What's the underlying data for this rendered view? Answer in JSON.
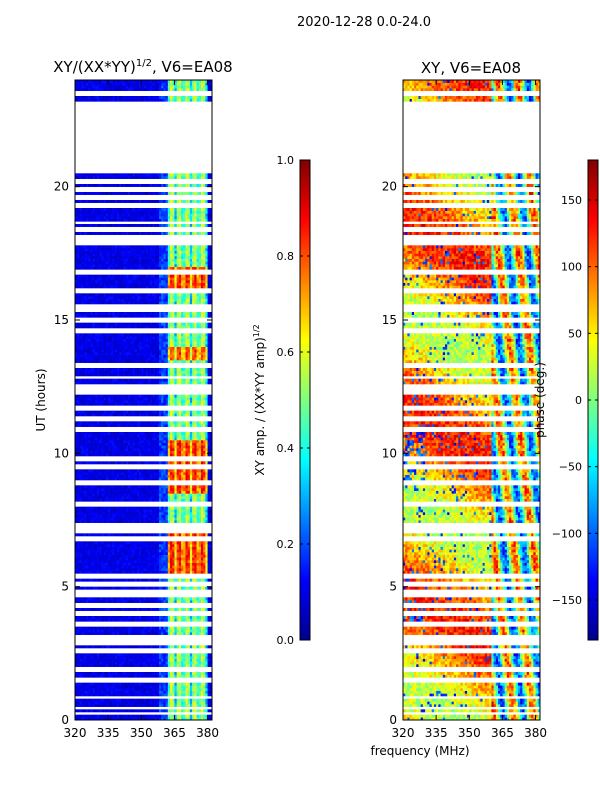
{
  "page_title": "2020-12-28 0.0-24.0",
  "shared_xlabel": "frequency (MHz)",
  "chart_data": [
    {
      "type": "heatmap",
      "title": "XY/(XX*YY)^{1/2}, V6=EA08",
      "title_main": "XY/(XX*YY)",
      "title_sup": "1/2",
      "title_tail": ", V6=EA08",
      "xlabel": "",
      "ylabel": "UT (hours)",
      "xlim": [
        320,
        382
      ],
      "ylim": [
        0,
        24
      ],
      "xticks": [
        320,
        335,
        350,
        365,
        380
      ],
      "yticks": [
        0,
        5,
        10,
        15,
        20
      ],
      "data_coverage_hours": [
        [
          0,
          20.5
        ],
        [
          23.2,
          24
        ]
      ],
      "blank_rows_hours": [
        0.25,
        0.45,
        0.85,
        1.5,
        1.9,
        2.6,
        2.9,
        3.1,
        3.6,
        4.0,
        4.3,
        4.65,
        4.8,
        5.1,
        5.4,
        6.8,
        7.1,
        7.2,
        7.35,
        8.1,
        8.9,
        9.5,
        9.8,
        10.9,
        11.3,
        11.7,
        12.3,
        12.5,
        12.85,
        13.3,
        14.6,
        15.0,
        15.35,
        15.5,
        16.1,
        16.8,
        17.9,
        18.1,
        18.4,
        18.65,
        19.3,
        19.6,
        19.9,
        20.2,
        23.5
      ],
      "colorbar": {
        "label": "XY amp. / (XX*YY amp)^{1/2}",
        "label_main": "XY amp. / (XX*YY amp)",
        "label_sup": "1/2",
        "ticks": [
          "0.0",
          "0.2",
          "0.4",
          "0.6",
          "0.8",
          "1.0"
        ],
        "range": [
          0,
          1
        ]
      },
      "colors": {
        "low": "#00008f",
        "mid": "#7fff7f",
        "high": "#800000"
      }
    },
    {
      "type": "heatmap",
      "title": "XY, V6=EA08",
      "xlabel": "frequency (MHz)",
      "ylabel": "",
      "xlim": [
        320,
        382
      ],
      "ylim": [
        0,
        24
      ],
      "xticks": [
        320,
        335,
        350,
        365,
        380
      ],
      "yticks": [
        0,
        5,
        10,
        15,
        20
      ],
      "data_coverage_hours": [
        [
          0,
          20.5
        ],
        [
          23.2,
          24
        ]
      ],
      "colorbar": {
        "label": "phase (deg.)",
        "ticks": [
          "-150",
          "-100",
          "-50",
          "0",
          "50",
          "100",
          "150"
        ],
        "range": [
          -180,
          180
        ]
      },
      "colors": {
        "low": "#00008f",
        "mid": "#7fff7f",
        "high": "#800000"
      }
    }
  ]
}
